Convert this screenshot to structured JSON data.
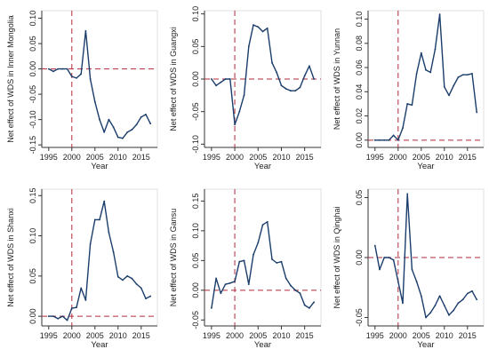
{
  "chart_data": [
    {
      "type": "line",
      "ylabel": "Net effect of WDS in Inner Mongolia",
      "xlabel": "Year",
      "ylim": [
        -0.155,
        0.115
      ],
      "xlim": [
        1993.5,
        2018.5
      ],
      "yticks": [
        "-0.15",
        "-0.10",
        "-0.05",
        "0.00",
        "0.05",
        "0.10"
      ],
      "yticks_values": [
        -0.15,
        -0.1,
        -0.05,
        0,
        0.05,
        0.1
      ],
      "xticks": [
        "1995",
        "2000",
        "2005",
        "2010",
        "2015"
      ],
      "xticks_values": [
        1995,
        2000,
        2005,
        2010,
        2015
      ],
      "vline_x": 2000,
      "hline_y": 0,
      "x": [
        1995,
        1996,
        1997,
        1998,
        1999,
        2000,
        2001,
        2002,
        2003,
        2004,
        2005,
        2006,
        2007,
        2008,
        2009,
        2010,
        2011,
        2012,
        2013,
        2014,
        2015,
        2016,
        2017
      ],
      "values": [
        0.0,
        -0.005,
        0.0,
        0.0,
        0.0,
        -0.015,
        -0.018,
        -0.01,
        0.075,
        -0.02,
        -0.065,
        -0.1,
        -0.125,
        -0.1,
        -0.115,
        -0.135,
        -0.137,
        -0.125,
        -0.12,
        -0.11,
        -0.095,
        -0.09,
        -0.108
      ]
    },
    {
      "type": "line",
      "ylabel": "Net effect of WDS in Guangxi",
      "xlabel": "Year",
      "ylim": [
        -0.105,
        0.105
      ],
      "xlim": [
        1993.5,
        2018.5
      ],
      "yticks": [
        "-0.10",
        "-0.05",
        "0.00",
        "0.05",
        "0.10"
      ],
      "yticks_values": [
        -0.1,
        -0.05,
        0,
        0.05,
        0.1
      ],
      "xticks": [
        "1995",
        "2000",
        "2005",
        "2010",
        "2015"
      ],
      "xticks_values": [
        1995,
        2000,
        2005,
        2010,
        2015
      ],
      "vline_x": 2000,
      "hline_y": 0,
      "x": [
        1995,
        1996,
        1997,
        1998,
        1999,
        2000,
        2001,
        2002,
        2003,
        2004,
        2005,
        2006,
        2007,
        2008,
        2009,
        2010,
        2011,
        2012,
        2013,
        2014,
        2015,
        2016,
        2017
      ],
      "values": [
        0.0,
        -0.01,
        -0.005,
        0.0,
        0.0,
        -0.07,
        -0.05,
        -0.025,
        0.05,
        0.083,
        0.08,
        0.073,
        0.078,
        0.025,
        0.01,
        -0.01,
        -0.015,
        -0.018,
        -0.018,
        -0.013,
        0.005,
        0.02,
        0.0
      ]
    },
    {
      "type": "line",
      "ylabel": "Net effect of WDS in Yunnan",
      "xlabel": "Year",
      "ylim": [
        -0.006,
        0.107
      ],
      "xlim": [
        1993.5,
        2018.5
      ],
      "yticks": [
        "0.00",
        "0.02",
        "0.04",
        "0.06",
        "0.08",
        "0.10"
      ],
      "yticks_values": [
        0,
        0.02,
        0.04,
        0.06,
        0.08,
        0.1
      ],
      "xticks": [
        "1995",
        "2000",
        "2005",
        "2010",
        "2015"
      ],
      "xticks_values": [
        1995,
        2000,
        2005,
        2010,
        2015
      ],
      "vline_x": 2000,
      "hline_y": 0,
      "x": [
        1995,
        1996,
        1997,
        1998,
        1999,
        2000,
        2001,
        2002,
        2003,
        2004,
        2005,
        2006,
        2007,
        2008,
        2009,
        2010,
        2011,
        2012,
        2013,
        2014,
        2015,
        2016,
        2017
      ],
      "values": [
        0.0,
        0.0,
        0.0,
        0.0,
        0.004,
        0.0,
        0.01,
        0.03,
        0.029,
        0.055,
        0.072,
        0.058,
        0.056,
        0.075,
        0.104,
        0.044,
        0.037,
        0.045,
        0.052,
        0.054,
        0.054,
        0.055,
        0.023
      ]
    },
    {
      "type": "line",
      "ylabel": "Net effect of WDS in Shanxi",
      "xlabel": "Year",
      "ylim": [
        -0.012,
        0.158
      ],
      "xlim": [
        1993.5,
        2018.5
      ],
      "yticks": [
        "0.00",
        "0.05",
        "0.10",
        "0.15"
      ],
      "yticks_values": [
        0,
        0.05,
        0.1,
        0.15
      ],
      "xticks": [
        "1995",
        "2000",
        "2005",
        "2010",
        "2015"
      ],
      "xticks_values": [
        1995,
        2000,
        2005,
        2010,
        2015
      ],
      "vline_x": 2000,
      "hline_y": 0,
      "x": [
        1995,
        1996,
        1997,
        1998,
        1999,
        2000,
        2001,
        2002,
        2003,
        2004,
        2005,
        2006,
        2007,
        2008,
        2009,
        2010,
        2011,
        2012,
        2013,
        2014,
        2015,
        2016,
        2017
      ],
      "values": [
        0.0,
        0.0,
        -0.003,
        0.0,
        -0.005,
        0.01,
        0.011,
        0.035,
        0.02,
        0.09,
        0.12,
        0.12,
        0.143,
        0.104,
        0.08,
        0.049,
        0.045,
        0.05,
        0.047,
        0.04,
        0.035,
        0.022,
        0.025
      ]
    },
    {
      "type": "line",
      "ylabel": "Net effect of WDS in Gansu",
      "xlabel": "Year",
      "ylim": [
        -0.06,
        0.17
      ],
      "xlim": [
        1993.5,
        2018.5
      ],
      "yticks": [
        "-0.05",
        "0.00",
        "0.05",
        "0.10",
        "0.15"
      ],
      "yticks_values": [
        -0.05,
        0,
        0.05,
        0.1,
        0.15
      ],
      "xticks": [
        "1995",
        "2000",
        "2005",
        "2010",
        "2015"
      ],
      "xticks_values": [
        1995,
        2000,
        2005,
        2010,
        2015
      ],
      "vline_x": 2000,
      "hline_y": 0,
      "x": [
        1995,
        1996,
        1997,
        1998,
        1999,
        2000,
        2001,
        2002,
        2003,
        2004,
        2005,
        2006,
        2007,
        2008,
        2009,
        2010,
        2011,
        2012,
        2013,
        2014,
        2015,
        2016,
        2017
      ],
      "values": [
        -0.03,
        0.02,
        -0.005,
        0.01,
        0.012,
        0.015,
        0.048,
        0.05,
        0.01,
        0.06,
        0.08,
        0.11,
        0.115,
        0.052,
        0.046,
        0.048,
        0.02,
        0.008,
        0.0,
        -0.005,
        -0.025,
        -0.03,
        -0.02
      ]
    },
    {
      "type": "line",
      "ylabel": "Net effect of WDS in Qinghai",
      "xlabel": "Year",
      "ylim": [
        -0.057,
        0.057
      ],
      "xlim": [
        1993.5,
        2018.5
      ],
      "yticks": [
        "-0.05",
        "0.00",
        "0.05"
      ],
      "yticks_values": [
        -0.05,
        0,
        0.05
      ],
      "xticks": [
        "1995",
        "2000",
        "2005",
        "2010",
        "2015"
      ],
      "xticks_values": [
        1995,
        2000,
        2005,
        2010,
        2015
      ],
      "vline_x": 2000,
      "hline_y": 0,
      "x": [
        1995,
        1996,
        1997,
        1998,
        1999,
        2000,
        2001,
        2002,
        2003,
        2004,
        2005,
        2006,
        2007,
        2008,
        2009,
        2010,
        2011,
        2012,
        2013,
        2014,
        2015,
        2016,
        2017
      ],
      "values": [
        0.01,
        -0.01,
        0.0,
        0.0,
        -0.002,
        -0.02,
        -0.038,
        0.053,
        -0.01,
        -0.02,
        -0.032,
        -0.05,
        -0.046,
        -0.04,
        -0.032,
        -0.04,
        -0.048,
        -0.044,
        -0.038,
        -0.035,
        -0.03,
        -0.028,
        -0.035
      ]
    }
  ]
}
